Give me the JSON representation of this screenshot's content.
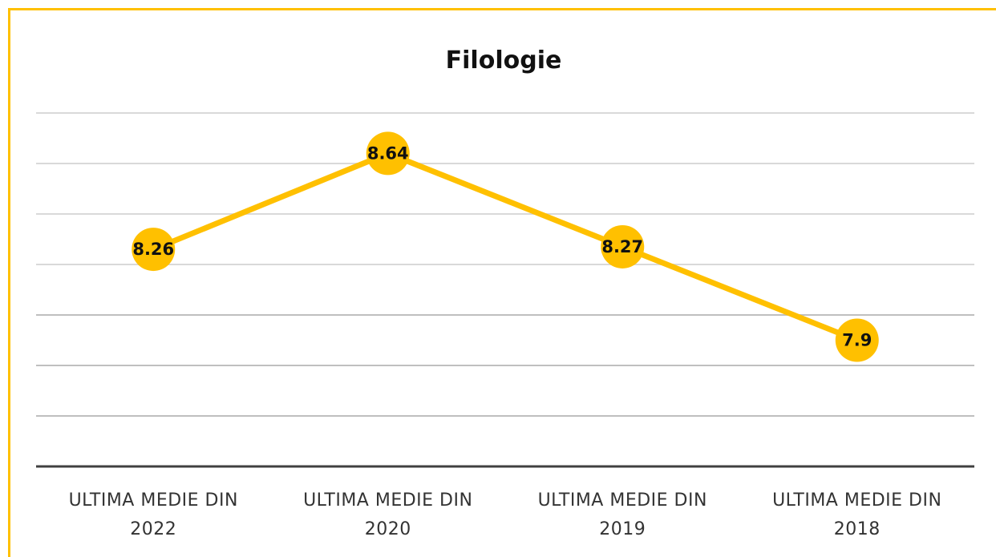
{
  "chart_data": {
    "type": "line",
    "title": "Filologie",
    "categories": [
      "ULTIMA MEDIE  DIN\n2022",
      "ULTIMA MEDIE  DIN\n2020",
      "ULTIMA MEDIE  DIN\n2019",
      "ULTIMA MEDIE  DIN\n2018"
    ],
    "series": [
      {
        "name": "Filologie",
        "color": "#ffc000",
        "values": [
          8.26,
          8.64,
          8.27,
          7.9
        ]
      }
    ],
    "ylim": [
      7.4,
      8.8
    ],
    "yticks": [
      7.4,
      7.6,
      7.8,
      8.0,
      8.2,
      8.4,
      8.6,
      8.8
    ],
    "grid": true
  }
}
